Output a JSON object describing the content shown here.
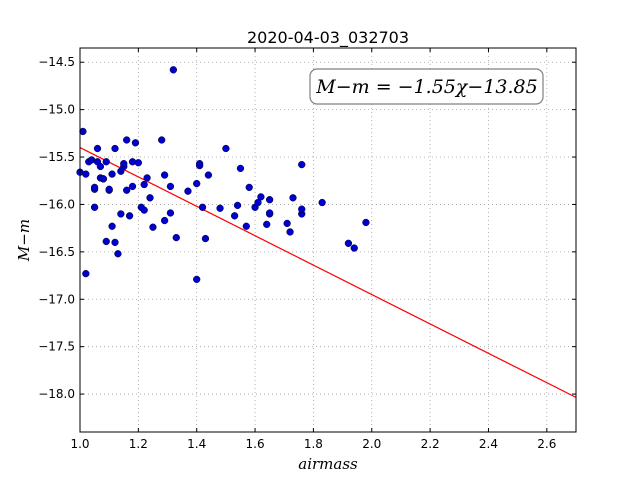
{
  "chart_data": {
    "type": "scatter",
    "title": "2020-04-03_032703",
    "xlabel": "airmass",
    "ylabel": "M−m",
    "xlim": [
      1.0,
      2.7
    ],
    "ylim": [
      -18.4,
      -14.35
    ],
    "xticks": [
      1.0,
      1.2,
      1.4,
      1.6,
      1.8,
      2.0,
      2.2,
      2.4,
      2.6
    ],
    "xtick_labels": [
      "1.0",
      "1.2",
      "1.4",
      "1.6",
      "1.8",
      "2.0",
      "2.2",
      "2.4",
      "2.6"
    ],
    "yticks": [
      -14.5,
      -15.0,
      -15.5,
      -16.0,
      -16.5,
      -17.0,
      -17.5,
      -18.0
    ],
    "ytick_labels": [
      "−14.5",
      "−15.0",
      "−15.5",
      "−16.0",
      "−16.5",
      "−17.0",
      "−17.5",
      "−18.0"
    ],
    "grid": true,
    "fit_label": "M−m = −1.55χ−13.85",
    "fit": {
      "slope": -1.55,
      "intercept": -13.85
    },
    "colors": {
      "points": "#0000cc",
      "fit_line": "#ff0000",
      "grid": "#a0a0a0"
    },
    "points": [
      [
        1.0,
        -15.66
      ],
      [
        1.01,
        -15.23
      ],
      [
        1.02,
        -15.68
      ],
      [
        1.02,
        -16.73
      ],
      [
        1.03,
        -15.55
      ],
      [
        1.04,
        -15.53
      ],
      [
        1.05,
        -15.84
      ],
      [
        1.05,
        -15.82
      ],
      [
        1.05,
        -16.03
      ],
      [
        1.06,
        -15.41
      ],
      [
        1.06,
        -15.55
      ],
      [
        1.07,
        -15.72
      ],
      [
        1.07,
        -15.6
      ],
      [
        1.08,
        -15.73
      ],
      [
        1.08,
        -15.73
      ],
      [
        1.09,
        -16.39
      ],
      [
        1.09,
        -15.55
      ],
      [
        1.1,
        -15.85
      ],
      [
        1.1,
        -15.84
      ],
      [
        1.11,
        -15.68
      ],
      [
        1.11,
        -16.23
      ],
      [
        1.12,
        -15.41
      ],
      [
        1.12,
        -16.4
      ],
      [
        1.13,
        -16.52
      ],
      [
        1.14,
        -16.1
      ],
      [
        1.14,
        -15.65
      ],
      [
        1.15,
        -15.6
      ],
      [
        1.15,
        -15.57
      ],
      [
        1.16,
        -15.85
      ],
      [
        1.16,
        -15.32
      ],
      [
        1.17,
        -16.12
      ],
      [
        1.18,
        -15.55
      ],
      [
        1.18,
        -15.81
      ],
      [
        1.19,
        -15.35
      ],
      [
        1.2,
        -15.56
      ],
      [
        1.21,
        -16.03
      ],
      [
        1.22,
        -15.79
      ],
      [
        1.22,
        -16.06
      ],
      [
        1.23,
        -15.72
      ],
      [
        1.24,
        -15.93
      ],
      [
        1.25,
        -16.24
      ],
      [
        1.28,
        -15.32
      ],
      [
        1.29,
        -15.69
      ],
      [
        1.29,
        -16.17
      ],
      [
        1.31,
        -15.81
      ],
      [
        1.31,
        -16.09
      ],
      [
        1.32,
        -14.58
      ],
      [
        1.33,
        -16.35
      ],
      [
        1.37,
        -15.86
      ],
      [
        1.4,
        -15.78
      ],
      [
        1.4,
        -16.79
      ],
      [
        1.41,
        -15.59
      ],
      [
        1.41,
        -15.57
      ],
      [
        1.42,
        -16.03
      ],
      [
        1.43,
        -16.36
      ],
      [
        1.44,
        -15.69
      ],
      [
        1.48,
        -16.04
      ],
      [
        1.5,
        -15.41
      ],
      [
        1.53,
        -16.12
      ],
      [
        1.54,
        -16.01
      ],
      [
        1.55,
        -15.62
      ],
      [
        1.57,
        -16.23
      ],
      [
        1.58,
        -15.82
      ],
      [
        1.6,
        -16.03
      ],
      [
        1.61,
        -15.98
      ],
      [
        1.62,
        -15.92
      ],
      [
        1.64,
        -16.21
      ],
      [
        1.65,
        -15.95
      ],
      [
        1.65,
        -16.1
      ],
      [
        1.65,
        -16.09
      ],
      [
        1.71,
        -16.2
      ],
      [
        1.72,
        -16.29
      ],
      [
        1.73,
        -15.93
      ],
      [
        1.76,
        -15.58
      ],
      [
        1.76,
        -16.1
      ],
      [
        1.76,
        -16.05
      ],
      [
        1.83,
        -15.98
      ],
      [
        1.92,
        -16.41
      ],
      [
        1.94,
        -16.46
      ],
      [
        1.98,
        -16.19
      ]
    ]
  }
}
